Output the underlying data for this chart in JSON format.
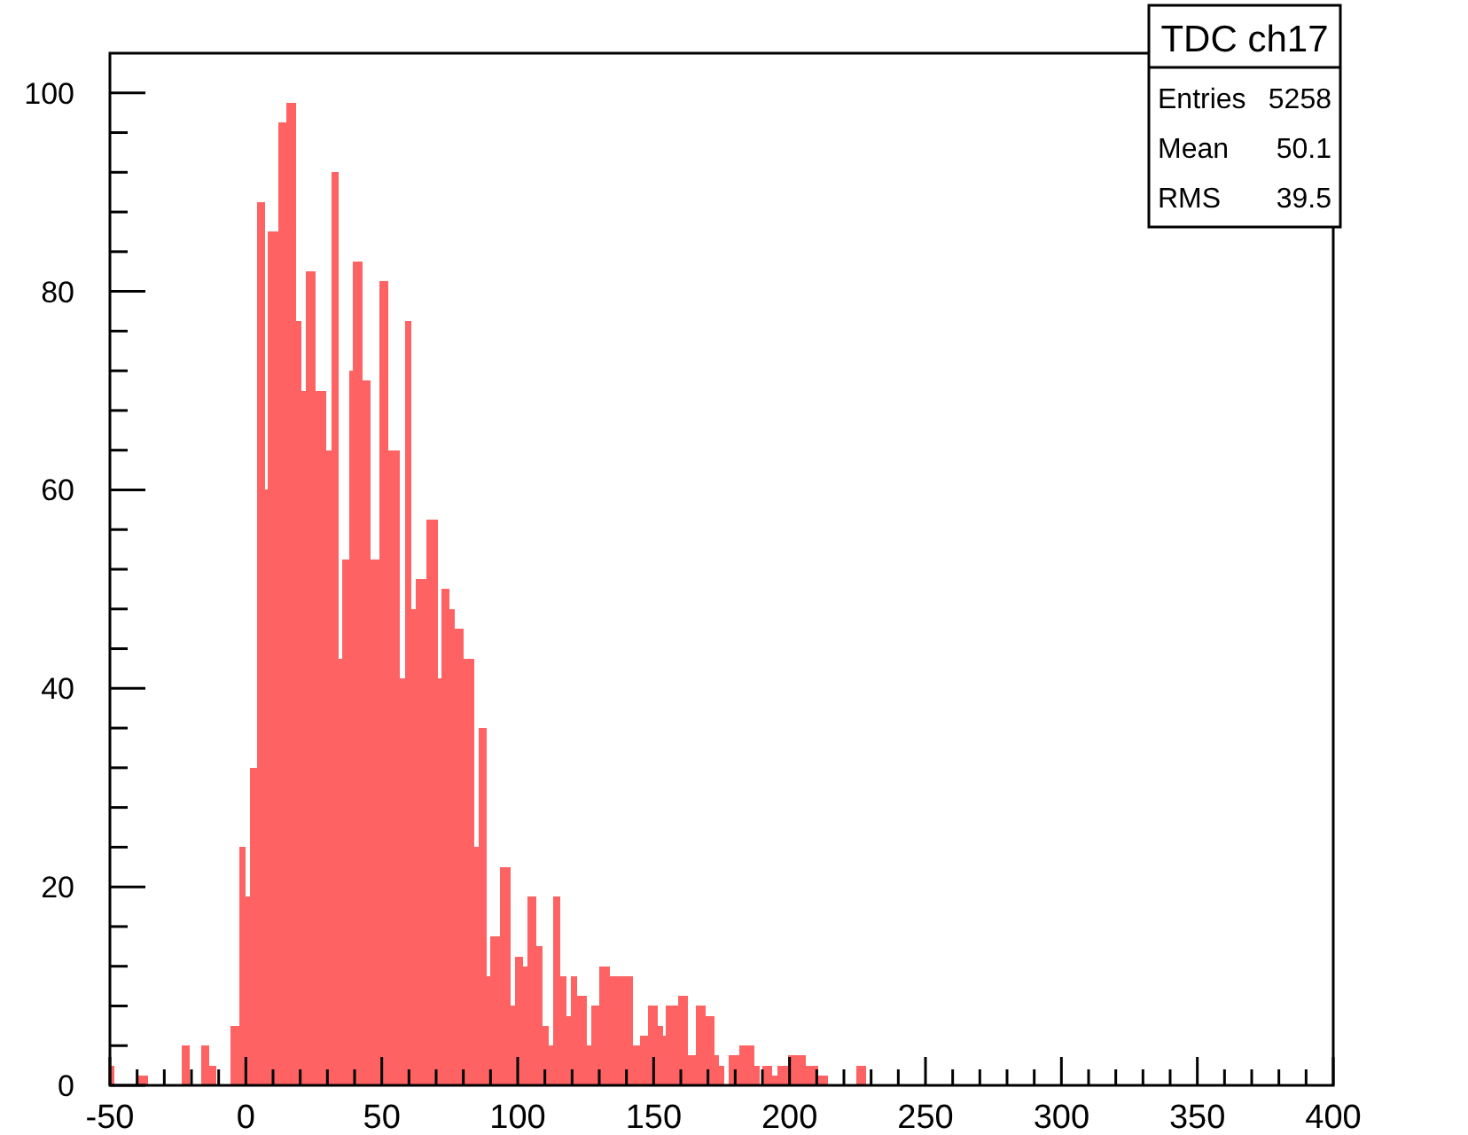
{
  "chart_data": {
    "type": "histogram",
    "title": "TDC ch17",
    "color": "#fe6262",
    "bins": [
      -50,
      -48.5,
      -40,
      -36,
      -23.5,
      -20.5,
      -16.5,
      -13.5,
      -11,
      -5.5,
      -2.5,
      0,
      1.5,
      4,
      7,
      8,
      12,
      15,
      18.5,
      20.5,
      22,
      25.5,
      29.5,
      31.5,
      34,
      35.5,
      38,
      39.5,
      43,
      46,
      49,
      52.5,
      56.5,
      58.5,
      61,
      62.5,
      66.5,
      70.5,
      72,
      75,
      77,
      80,
      84,
      85.5,
      88.5,
      90,
      93.5,
      97.5,
      99,
      102,
      103.5,
      107,
      109,
      111.5,
      113,
      115.5,
      118,
      119.5,
      122,
      125.5,
      127,
      130,
      134,
      142.5,
      145,
      148,
      151.5,
      153.5,
      154.5,
      159,
      162.5,
      165.5,
      169,
      172.5,
      174,
      176,
      177.5,
      181.5,
      187,
      189,
      190,
      193.5,
      195.5,
      199.5,
      206,
      210.5,
      214,
      224.5,
      228
    ],
    "values": [
      2,
      0,
      1,
      0,
      4,
      0,
      4,
      2,
      0,
      6,
      24,
      19,
      32,
      89,
      60,
      86,
      97,
      99,
      77,
      70,
      82,
      70,
      64,
      92,
      43,
      53,
      72,
      83,
      71,
      53,
      81,
      64,
      41,
      77,
      48,
      51,
      57,
      41,
      50,
      48,
      46,
      43,
      24,
      36,
      11,
      15,
      22,
      8,
      13,
      12,
      19,
      14,
      6,
      4,
      19,
      11,
      7,
      11,
      9,
      4,
      8,
      12,
      11,
      4,
      5,
      8,
      6,
      5,
      8,
      9,
      3,
      8,
      7,
      3,
      2,
      0,
      3,
      4,
      2,
      0,
      2,
      1,
      2,
      3,
      2,
      1,
      0,
      2
    ],
    "xlim": [
      -50,
      400
    ],
    "xticks": [
      -50,
      {
        "value": -40,
        "label": null
      },
      {
        "value": -30,
        "label": null
      },
      {
        "value": -20,
        "label": null
      },
      {
        "value": -10,
        "label": null
      },
      0,
      {
        "value": 10,
        "label": null
      },
      {
        "value": 20,
        "label": null
      },
      {
        "value": 30,
        "label": null
      },
      {
        "value": 40,
        "label": null
      },
      50,
      {
        "value": 60,
        "label": null
      },
      {
        "value": 70,
        "label": null
      },
      {
        "value": 80,
        "label": null
      },
      {
        "value": 90,
        "label": null
      },
      100,
      {
        "value": 110,
        "label": null
      },
      {
        "value": 120,
        "label": null
      },
      {
        "value": 130,
        "label": null
      },
      {
        "value": 140,
        "label": null
      },
      150,
      {
        "value": 160,
        "label": null
      },
      {
        "value": 170,
        "label": null
      },
      {
        "value": 180,
        "label": null
      },
      {
        "value": 190,
        "label": null
      },
      200,
      {
        "value": 210,
        "label": null
      },
      {
        "value": 220,
        "label": null
      },
      {
        "value": 230,
        "label": null
      },
      {
        "value": 240,
        "label": null
      },
      250,
      {
        "value": 260,
        "label": null
      },
      {
        "value": 270,
        "label": null
      },
      {
        "value": 280,
        "label": null
      },
      {
        "value": 290,
        "label": null
      },
      300,
      {
        "value": 310,
        "label": null
      },
      {
        "value": 320,
        "label": null
      },
      {
        "value": 330,
        "label": null
      },
      {
        "value": 340,
        "label": null
      },
      350,
      {
        "value": 360,
        "label": null
      },
      {
        "value": 370,
        "label": null
      },
      {
        "value": 380,
        "label": null
      },
      {
        "value": 390,
        "label": null
      },
      400
    ],
    "ylim": [
      0,
      104
    ],
    "yticks": [
      0,
      {
        "value": 4,
        "label": null
      },
      {
        "value": 8,
        "label": null
      },
      {
        "value": 12,
        "label": null
      },
      {
        "value": 16,
        "label": null
      },
      20,
      {
        "value": 24,
        "label": null
      },
      {
        "value": 28,
        "label": null
      },
      {
        "value": 32,
        "label": null
      },
      {
        "value": 36,
        "label": null
      },
      40,
      {
        "value": 44,
        "label": null
      },
      {
        "value": 48,
        "label": null
      },
      {
        "value": 52,
        "label": null
      },
      {
        "value": 56,
        "label": null
      },
      60,
      {
        "value": 64,
        "label": null
      },
      {
        "value": 68,
        "label": null
      },
      {
        "value": 72,
        "label": null
      },
      {
        "value": 76,
        "label": null
      },
      80,
      {
        "value": 84,
        "label": null
      },
      {
        "value": 88,
        "label": null
      },
      {
        "value": 92,
        "label": null
      },
      {
        "value": 96,
        "label": null
      },
      100
    ],
    "annotations": [
      "Entries",
      "5258",
      "Mean",
      "50.1",
      "RMS",
      "39.5"
    ],
    "grid": false
  }
}
